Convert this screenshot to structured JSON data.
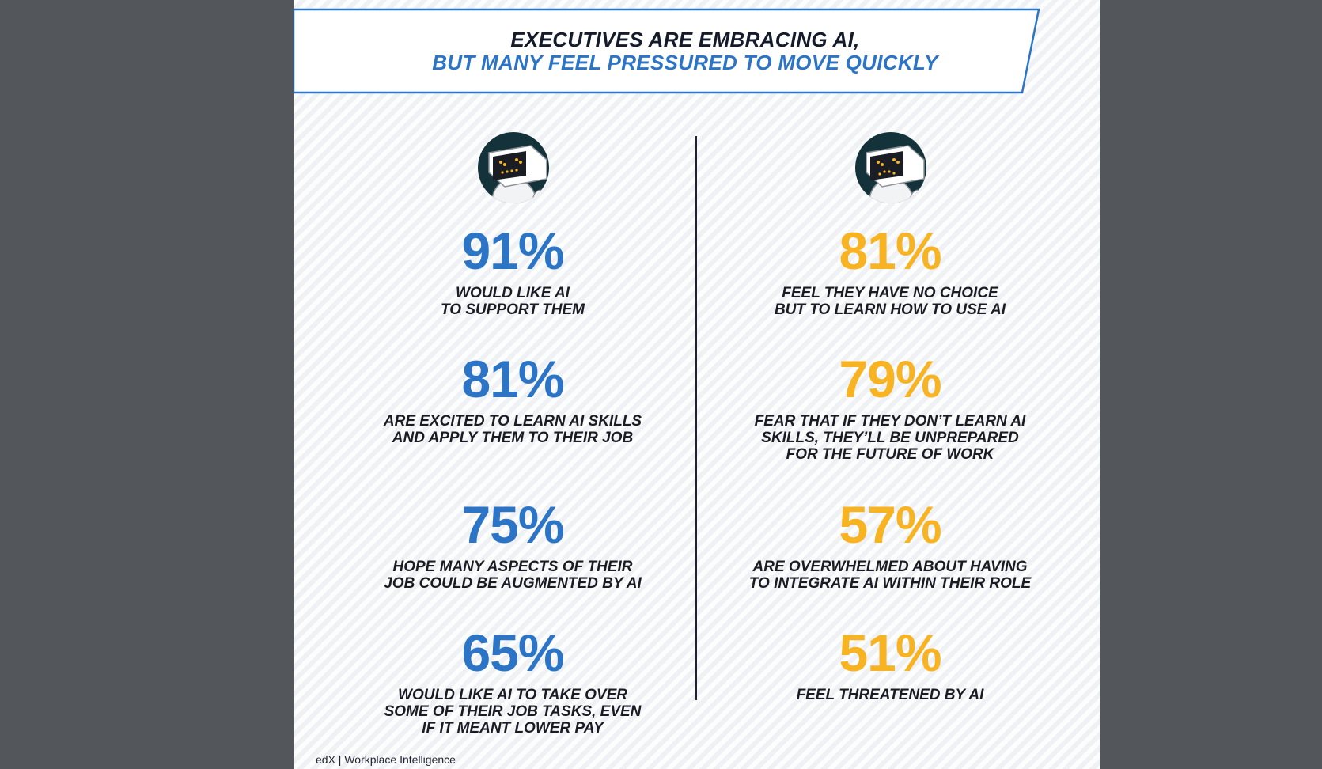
{
  "banner": {
    "line1": "EXECUTIVES ARE EMBRACING AI,",
    "line2": "BUT MANY FEEL PRESSURED TO MOVE QUICKLY"
  },
  "left": {
    "icon": "robot-icon",
    "stats": [
      {
        "value": "91%",
        "label": "WOULD LIKE AI\nTO SUPPORT THEM"
      },
      {
        "value": "81%",
        "label": "ARE EXCITED TO LEARN AI SKILLS\nAND APPLY THEM TO THEIR JOB"
      },
      {
        "value": "75%",
        "label": "HOPE MANY ASPECTS OF THEIR\nJOB COULD BE AUGMENTED BY AI"
      },
      {
        "value": "65%",
        "label": "WOULD LIKE AI TO TAKE OVER\nSOME OF THEIR JOB TASKS, EVEN\nIF IT MEANT LOWER PAY"
      }
    ]
  },
  "right": {
    "icon": "robot-icon",
    "stats": [
      {
        "value": "81%",
        "label": "FEEL THEY HAVE NO CHOICE\nBUT TO LEARN HOW TO USE AI"
      },
      {
        "value": "79%",
        "label": "FEAR THAT IF THEY DON’T LEARN AI\nSKILLS, THEY’LL BE UNPREPARED\nFOR THE FUTURE OF WORK"
      },
      {
        "value": "57%",
        "label": "ARE OVERWHELMED ABOUT HAVING\nTO INTEGRATE AI WITHIN THEIR ROLE"
      },
      {
        "value": "51%",
        "label": "FEEL THREATENED BY AI"
      }
    ]
  },
  "footer": "edX | Workplace Intelligence",
  "colors": {
    "blue": "#2b74c6",
    "yellow": "#f7b321",
    "dark": "#141b2b",
    "viewer_bg": "#53575b"
  }
}
